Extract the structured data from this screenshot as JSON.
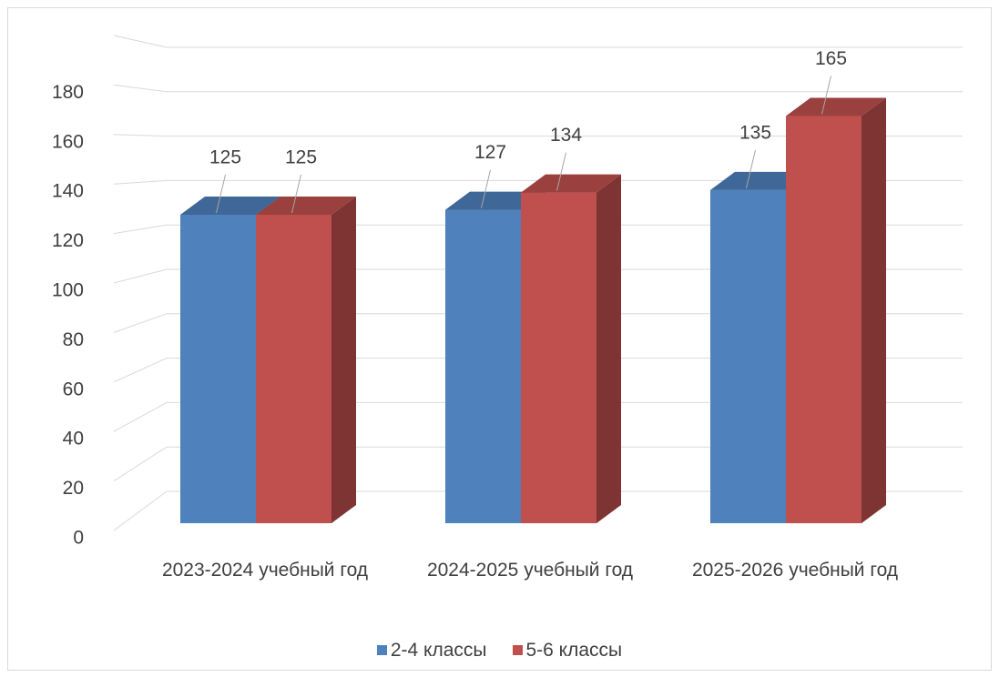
{
  "chart_data": {
    "type": "bar3d",
    "categories": [
      "2023-2024 учебный год",
      "2024-2025 учебный год",
      "2025-2026 учебный год"
    ],
    "series": [
      {
        "name": "2-4 классы",
        "color": "#4f81bd",
        "values": [
          125,
          127,
          135
        ]
      },
      {
        "name": "5-6 классы",
        "color": "#c0504d",
        "values": [
          125,
          134,
          165
        ]
      }
    ],
    "ylim": [
      0,
      200
    ],
    "yticks": [
      0,
      20,
      40,
      60,
      80,
      100,
      120,
      140,
      160,
      180
    ],
    "grid": true,
    "legend": "bottom"
  }
}
